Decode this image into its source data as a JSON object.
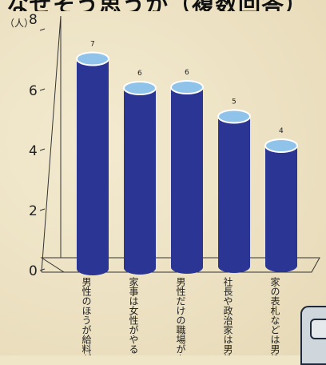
{
  "header": {
    "title_fragment": "なぜそう思うか（複数回答）"
  },
  "chart_data": {
    "type": "bar",
    "ylabel": "（人）",
    "ylim": [
      0,
      8
    ],
    "yticks": [
      0,
      2,
      4,
      6,
      8
    ],
    "categories": [
      "男性のほうが給料が高そう",
      "家事は女性がやることが多い",
      "男性だけの職場があるから",
      "社長や政治家は男性が多いから",
      "家の表札などは男性の名前だから"
    ],
    "values": [
      7,
      6,
      6,
      5,
      4
    ],
    "bar_color": "#2b3593",
    "cap_color": "#8fc3ea",
    "grid": false
  }
}
